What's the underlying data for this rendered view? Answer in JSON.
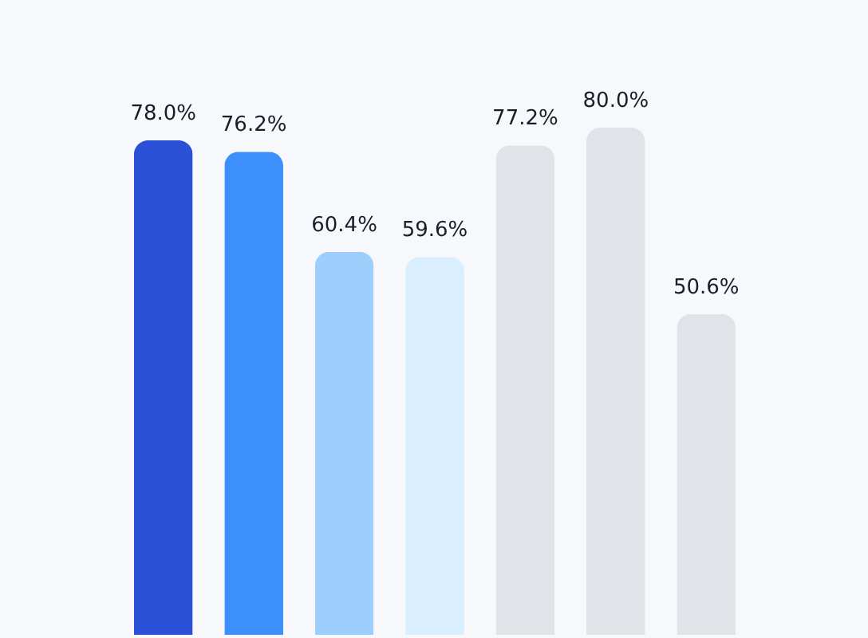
{
  "chart_data": {
    "type": "bar",
    "categories": [
      null,
      null,
      null,
      null,
      null,
      null,
      null
    ],
    "values": [
      78.0,
      76.2,
      60.4,
      59.6,
      77.2,
      80.0,
      50.6
    ],
    "value_labels": [
      "78.0%",
      "76.2%",
      "60.4%",
      "59.6%",
      "77.2%",
      "80.0%",
      "50.6%"
    ],
    "colors": [
      "#2b50d8",
      "#3d8ffc",
      "#9dcffc",
      "#d9eefe",
      "#e0e3e8",
      "#e0e3e8",
      "#e0e3e8"
    ]
  }
}
